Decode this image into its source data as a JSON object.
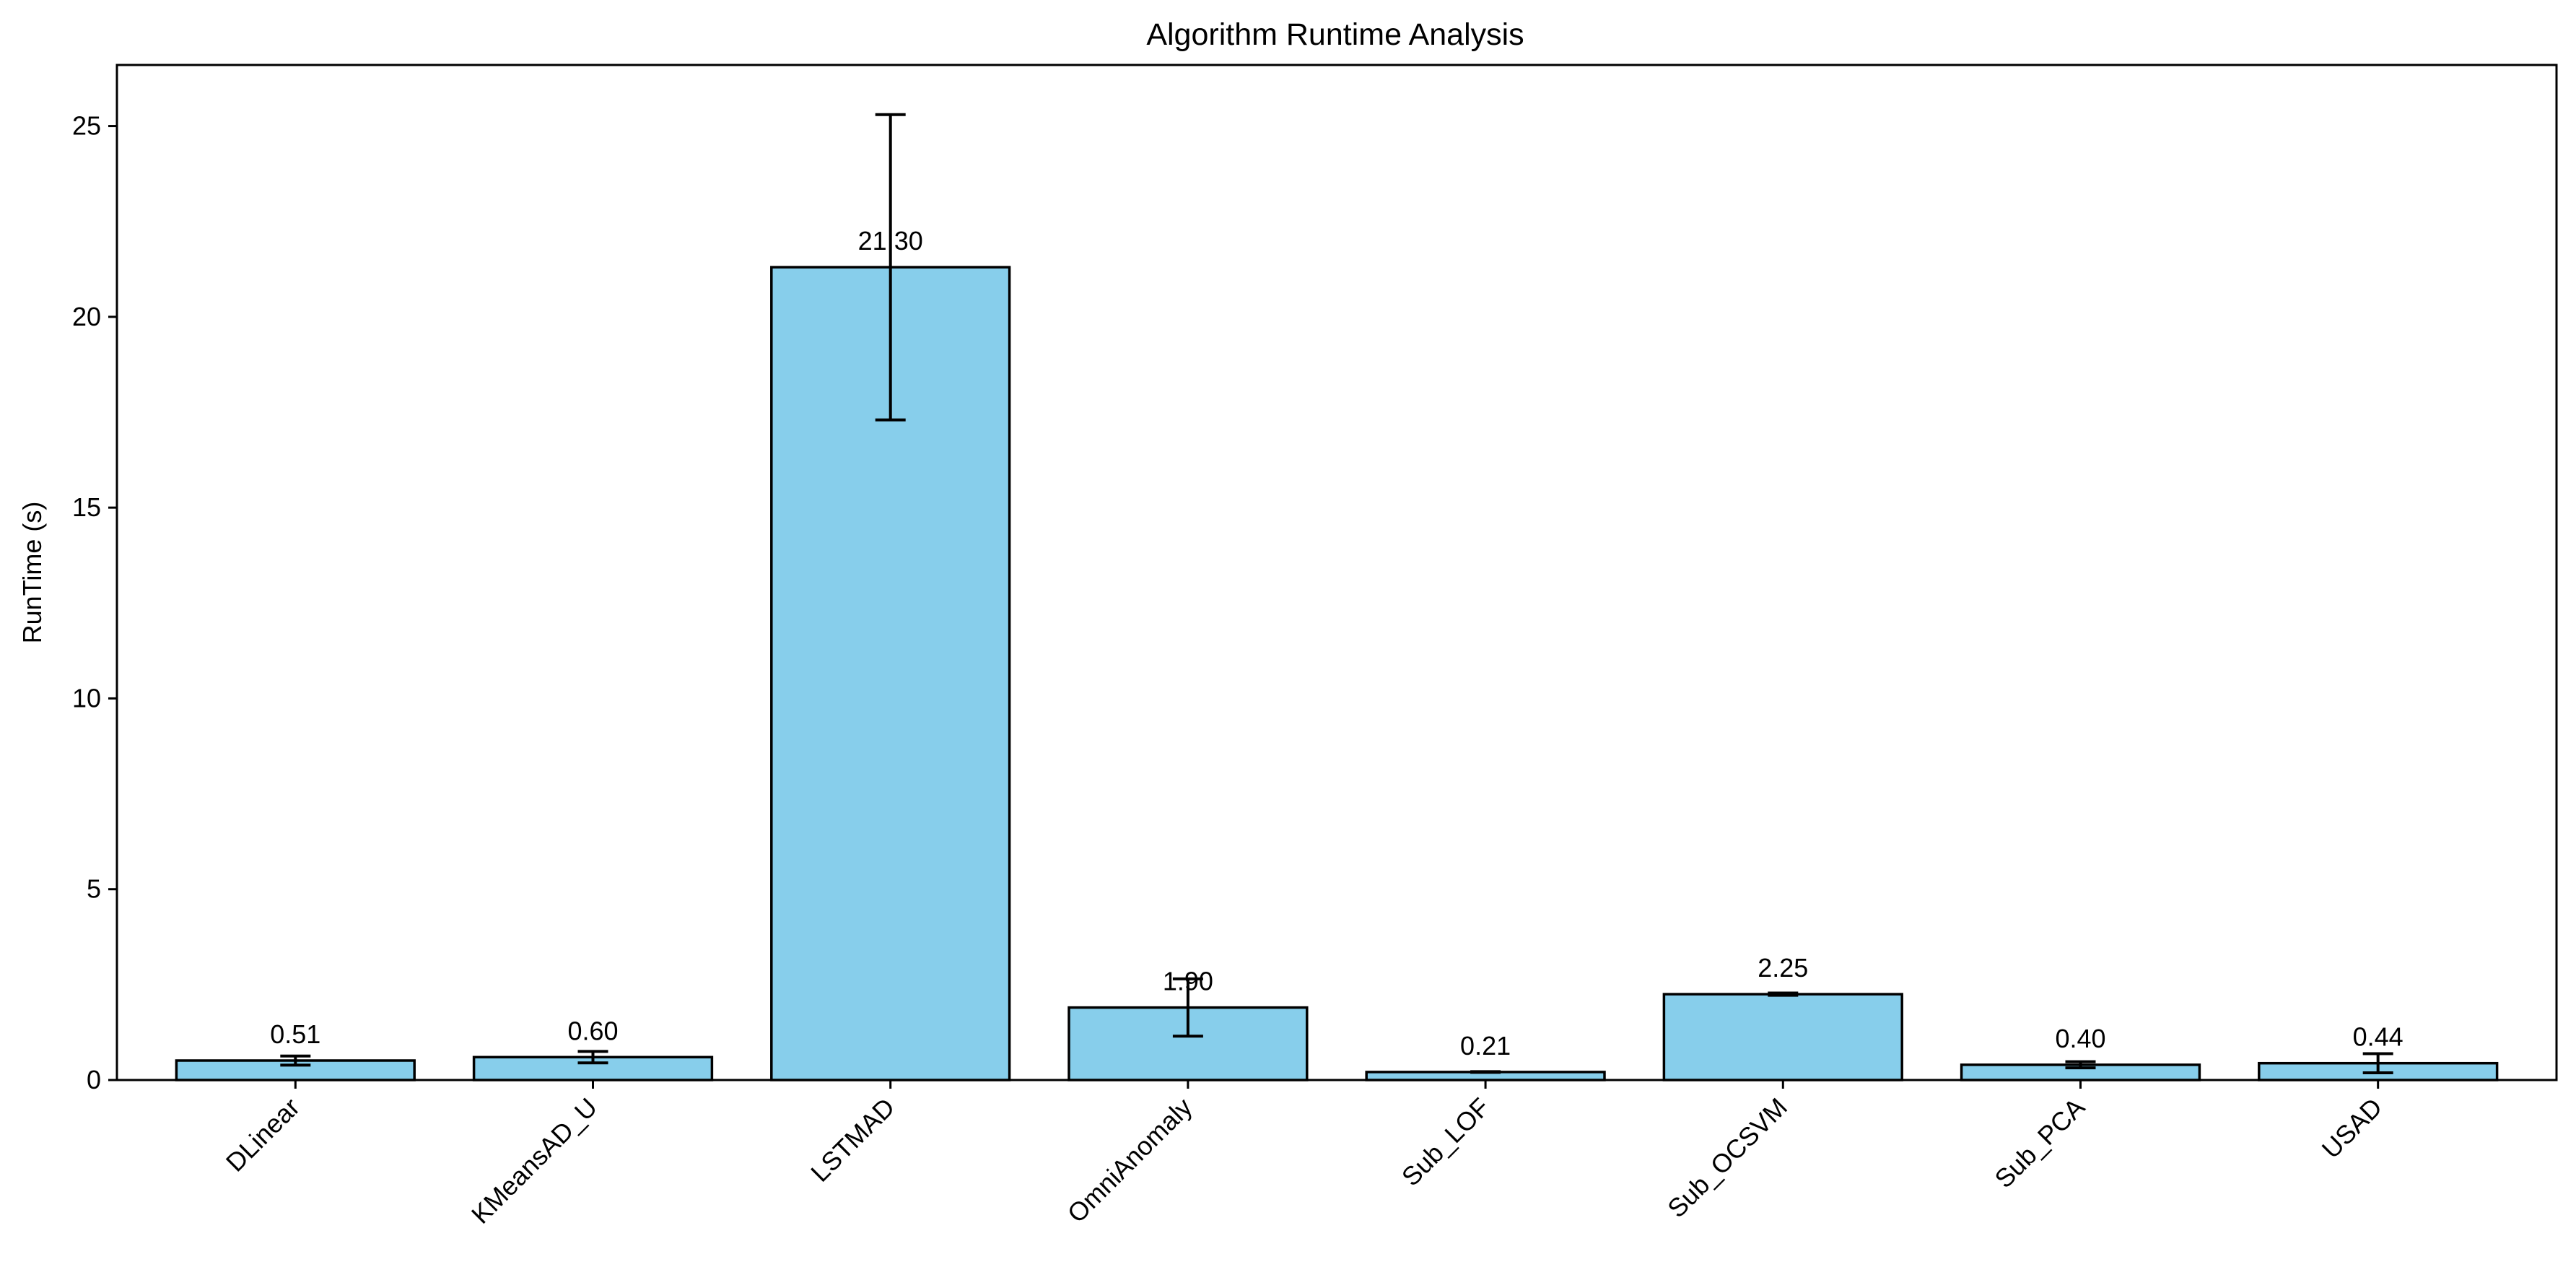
{
  "chart_data": {
    "type": "bar",
    "title": "Algorithm Runtime Analysis",
    "xlabel": "",
    "ylabel": "RunTime (s)",
    "categories": [
      "DLinear",
      "KMeansAD_U",
      "LSTMAD",
      "OmniAnomaly",
      "Sub_LOF",
      "Sub_OCSVM",
      "Sub_PCA",
      "USAD"
    ],
    "values": [
      0.51,
      0.6,
      21.3,
      1.9,
      0.21,
      2.25,
      0.4,
      0.44
    ],
    "value_labels": [
      "0.51",
      "0.60",
      "21.30",
      "1.90",
      "0.21",
      "2.25",
      "0.40",
      "0.44"
    ],
    "errors": [
      0.12,
      0.15,
      4.0,
      0.75,
      0.01,
      0.03,
      0.08,
      0.25
    ],
    "ylim": [
      0,
      26.6
    ],
    "yticks": [
      0,
      5,
      10,
      15,
      20,
      25
    ],
    "ytick_labels": [
      "0",
      "5",
      "10",
      "15",
      "20",
      "25"
    ],
    "grid": false,
    "legend": "none",
    "bar_color": "#87CEEB",
    "edge_color": "#000000",
    "error_bar_color": "#000000"
  }
}
